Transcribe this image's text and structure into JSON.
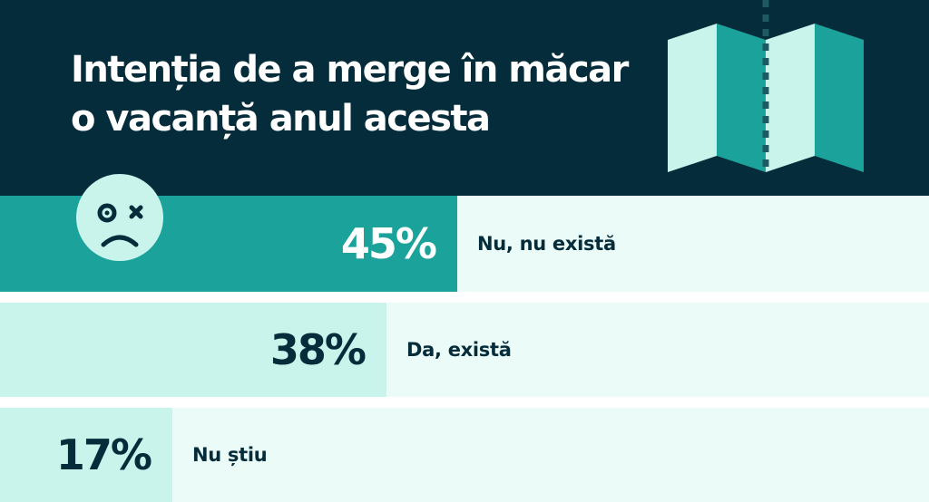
{
  "title": {
    "line1": "Intenția de a merge în măcar",
    "line2": "o vacanță anul acesta"
  },
  "icons": {
    "map": "folded-map-icon",
    "face": "sad-dizzy-face-icon"
  },
  "colors": {
    "header_bg": "#042c3a",
    "accent_dark": "#1ba39b",
    "accent_light": "#c8f4ec",
    "row_bg": "#ebfbf8",
    "text_dark": "#042c3a",
    "text_light": "#ffffff"
  },
  "chart_data": {
    "type": "bar",
    "orientation": "horizontal",
    "categories": [
      "Nu, nu există",
      "Da, există",
      "Nu știu"
    ],
    "values": [
      45,
      38,
      17
    ],
    "value_labels": [
      "45%",
      "38%",
      "17%"
    ],
    "unit": "%",
    "xlim": [
      0,
      100
    ],
    "title": "Intenția de a merge în măcar o vacanță anul acesta",
    "grid": false
  }
}
